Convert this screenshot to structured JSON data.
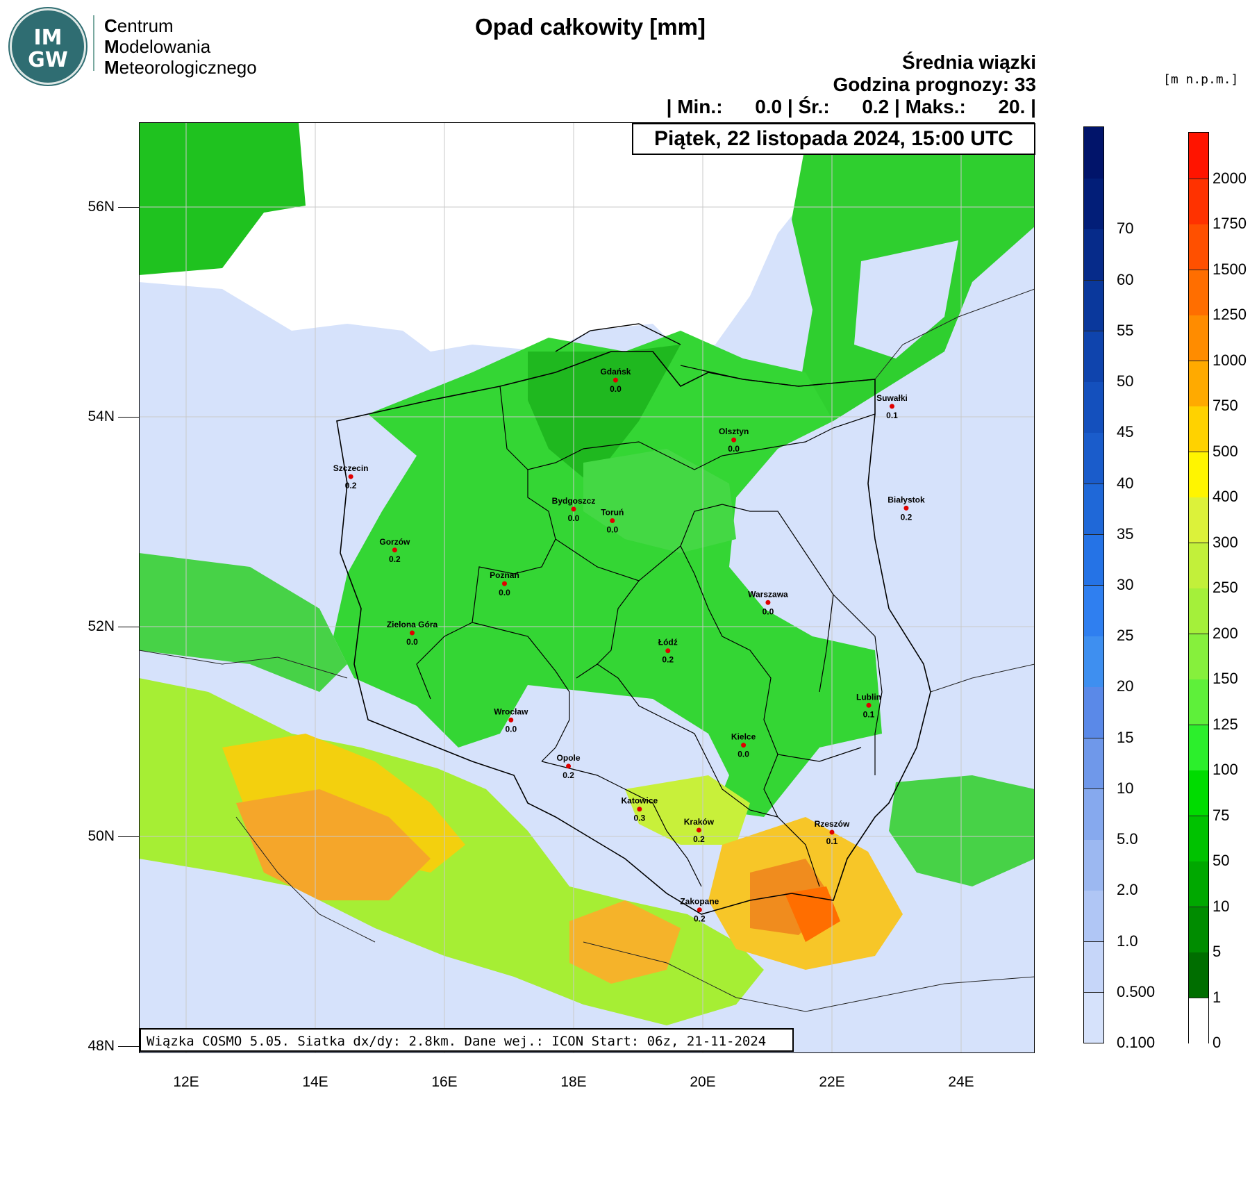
{
  "logo": {
    "badge_top": "IM",
    "badge_bottom": "GW",
    "line1_cap": "C",
    "line1_rest": "entrum",
    "line2_cap": "M",
    "line2_rest": "odelowania",
    "line3_cap": "M",
    "line3_rest": "eteorologicznego"
  },
  "title": "Opad całkowity [mm]",
  "info": {
    "line1": "Średnia wiązki",
    "line2": "Godzina prognozy: 33",
    "line3": "| Min.:      0.0 | Śr.:      0.2 | Maks.:      20. |"
  },
  "date": "Piątek, 22 listopada 2024, 15:00 UTC",
  "footer": "Wiązka COSMO 5.05. Siatka dx/dy: 2.8km. Dane wej.: ICON Start: 06z, 21-11-2024",
  "terrain_unit": "[m n.p.m.]",
  "axes": {
    "lat_labels": [
      "56N",
      "54N",
      "52N",
      "50N",
      "48N"
    ],
    "lon_labels": [
      "12E",
      "14E",
      "16E",
      "18E",
      "20E",
      "22E",
      "24E"
    ]
  },
  "cities": [
    {
      "name": "Gdańsk",
      "value": "0.0",
      "lon": 18.65,
      "lat": 54.35
    },
    {
      "name": "Suwałki",
      "value": "0.1",
      "lon": 22.93,
      "lat": 54.1
    },
    {
      "name": "Olsztyn",
      "value": "0.0",
      "lon": 20.48,
      "lat": 53.78
    },
    {
      "name": "Szczecin",
      "value": "0.2",
      "lon": 14.55,
      "lat": 53.43
    },
    {
      "name": "Bydgoszcz",
      "value": "0.0",
      "lon": 18.0,
      "lat": 53.12
    },
    {
      "name": "Toruń",
      "value": "0.0",
      "lon": 18.6,
      "lat": 53.01
    },
    {
      "name": "Białystok",
      "value": "0.2",
      "lon": 23.15,
      "lat": 53.13
    },
    {
      "name": "Gorzów",
      "value": "0.2",
      "lon": 15.23,
      "lat": 52.73
    },
    {
      "name": "Poznań",
      "value": "0.0",
      "lon": 16.93,
      "lat": 52.41
    },
    {
      "name": "Warszawa",
      "value": "0.0",
      "lon": 21.01,
      "lat": 52.23
    },
    {
      "name": "Zielona Góra",
      "value": "0.0",
      "lon": 15.5,
      "lat": 51.94
    },
    {
      "name": "Łódź",
      "value": "0.2",
      "lon": 19.46,
      "lat": 51.77
    },
    {
      "name": "Lublin",
      "value": "0.1",
      "lon": 22.57,
      "lat": 51.25
    },
    {
      "name": "Wrocław",
      "value": "0.0",
      "lon": 17.03,
      "lat": 51.11
    },
    {
      "name": "Kielce",
      "value": "0.0",
      "lon": 20.63,
      "lat": 50.87
    },
    {
      "name": "Opole",
      "value": "0.2",
      "lon": 17.92,
      "lat": 50.67
    },
    {
      "name": "Katowice",
      "value": "0.3",
      "lon": 19.02,
      "lat": 50.26
    },
    {
      "name": "Kraków",
      "value": "0.2",
      "lon": 19.94,
      "lat": 50.06
    },
    {
      "name": "Rzeszów",
      "value": "0.1",
      "lon": 22.0,
      "lat": 50.04
    },
    {
      "name": "Zakopane",
      "value": "0.2",
      "lon": 19.95,
      "lat": 49.3
    }
  ],
  "precip_colorbar": {
    "labels": [
      "0.100",
      "0.500",
      "1.0",
      "2.0",
      "5.0",
      "10",
      "15",
      "20",
      "25",
      "30",
      "35",
      "40",
      "45",
      "50",
      "55",
      "60",
      "70"
    ],
    "colors": [
      "#d6e2fb",
      "#c6d6f9",
      "#b0c6f5",
      "#9cb8f1",
      "#86a9ee",
      "#6f98ea",
      "#5a89e8",
      "#3e8ff0",
      "#2f7ff0",
      "#2573e6",
      "#1f68d8",
      "#1a5ccb",
      "#1450bd",
      "#0f44ad",
      "#0a389c",
      "#062b8a",
      "#021e78",
      "#01146a"
    ]
  },
  "terrain_colorbar": {
    "labels": [
      "0",
      "1",
      "5",
      "10",
      "50",
      "75",
      "100",
      "125",
      "150",
      "200",
      "250",
      "300",
      "400",
      "500",
      "750",
      "1000",
      "1250",
      "1500",
      "1750",
      "2000"
    ],
    "colors": [
      "#ffffff",
      "#006e00",
      "#008c00",
      "#00a800",
      "#00c200",
      "#00dc00",
      "#2cef2c",
      "#5ef03a",
      "#86f03c",
      "#a4f03a",
      "#c2f03a",
      "#dcf23a",
      "#fff500",
      "#ffd200",
      "#ffaa00",
      "#ff8c00",
      "#ff6e00",
      "#ff5000",
      "#ff3200",
      "#ff1400"
    ]
  }
}
